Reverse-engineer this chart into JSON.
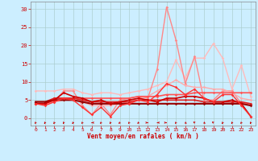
{
  "xlabel": "Vent moyen/en rafales ( km/h )",
  "background_color": "#cceeff",
  "grid_color": "#aacccc",
  "x_ticks": [
    0,
    1,
    2,
    3,
    4,
    5,
    6,
    7,
    8,
    9,
    10,
    11,
    12,
    13,
    14,
    15,
    16,
    17,
    18,
    19,
    20,
    21,
    22,
    23
  ],
  "ylim": [
    -2,
    32
  ],
  "yticks": [
    0,
    5,
    10,
    15,
    20,
    25,
    30
  ],
  "lines": [
    {
      "x": [
        0,
        1,
        2,
        3,
        4,
        5,
        6,
        7,
        8,
        9,
        10,
        11,
        12,
        13,
        14,
        15,
        16,
        17,
        18,
        19,
        20,
        21,
        22,
        23
      ],
      "y": [
        7.5,
        7.5,
        7.5,
        8.0,
        8.0,
        7.0,
        6.5,
        7.0,
        7.0,
        6.5,
        7.0,
        7.5,
        8.0,
        9.0,
        10.0,
        16.0,
        11.0,
        16.5,
        16.5,
        20.5,
        16.5,
        8.0,
        14.5,
        6.0
      ],
      "color": "#ffbbbb",
      "lw": 1.0,
      "marker": "D",
      "ms": 1.8
    },
    {
      "x": [
        0,
        1,
        2,
        3,
        4,
        5,
        6,
        7,
        8,
        9,
        10,
        11,
        12,
        13,
        14,
        15,
        16,
        17,
        18,
        19,
        20,
        21,
        22,
        23
      ],
      "y": [
        4.0,
        4.0,
        4.5,
        7.5,
        7.5,
        3.5,
        1.0,
        4.0,
        1.0,
        5.0,
        5.5,
        6.0,
        5.5,
        13.5,
        30.5,
        21.5,
        9.5,
        17.0,
        5.0,
        5.0,
        7.5,
        7.5,
        4.0,
        4.0
      ],
      "color": "#ff8888",
      "lw": 1.0,
      "marker": "D",
      "ms": 1.8
    },
    {
      "x": [
        0,
        1,
        2,
        3,
        4,
        5,
        6,
        7,
        8,
        9,
        10,
        11,
        12,
        13,
        14,
        15,
        16,
        17,
        18,
        19,
        20,
        21,
        22,
        23
      ],
      "y": [
        4.0,
        4.0,
        4.5,
        5.0,
        5.0,
        4.5,
        3.5,
        3.5,
        3.5,
        4.0,
        4.5,
        5.5,
        6.0,
        7.5,
        9.0,
        10.5,
        9.0,
        8.5,
        8.5,
        8.0,
        8.0,
        7.0,
        5.5,
        5.0
      ],
      "color": "#ffaaaa",
      "lw": 1.0,
      "marker": "D",
      "ms": 1.8
    },
    {
      "x": [
        0,
        1,
        2,
        3,
        4,
        5,
        6,
        7,
        8,
        9,
        10,
        11,
        12,
        13,
        14,
        15,
        16,
        17,
        18,
        19,
        20,
        21,
        22,
        23
      ],
      "y": [
        4.0,
        4.0,
        5.5,
        5.5,
        5.5,
        5.5,
        5.5,
        5.5,
        5.5,
        5.5,
        5.5,
        6.0,
        6.0,
        6.0,
        6.5,
        6.5,
        6.5,
        7.0,
        7.0,
        7.0,
        7.0,
        7.0,
        7.0,
        7.0
      ],
      "color": "#ff5555",
      "lw": 1.2,
      "marker": "D",
      "ms": 1.8
    },
    {
      "x": [
        0,
        1,
        2,
        3,
        4,
        5,
        6,
        7,
        8,
        9,
        10,
        11,
        12,
        13,
        14,
        15,
        16,
        17,
        18,
        19,
        20,
        21,
        22,
        23
      ],
      "y": [
        4.5,
        4.5,
        5.5,
        5.5,
        5.5,
        5.0,
        4.5,
        4.5,
        4.5,
        4.5,
        4.5,
        5.0,
        5.0,
        5.0,
        5.0,
        5.0,
        5.0,
        5.0,
        4.5,
        4.5,
        4.5,
        4.5,
        4.5,
        4.0
      ],
      "color": "#dd2222",
      "lw": 1.2,
      "marker": "D",
      "ms": 1.8
    },
    {
      "x": [
        0,
        1,
        2,
        3,
        4,
        5,
        6,
        7,
        8,
        9,
        10,
        11,
        12,
        13,
        14,
        15,
        16,
        17,
        18,
        19,
        20,
        21,
        22,
        23
      ],
      "y": [
        4.5,
        4.5,
        5.0,
        5.0,
        5.0,
        4.5,
        4.0,
        4.0,
        4.0,
        4.0,
        4.0,
        4.0,
        4.0,
        4.0,
        4.0,
        4.0,
        4.0,
        4.0,
        4.0,
        4.0,
        4.0,
        4.0,
        4.0,
        3.5
      ],
      "color": "#990000",
      "lw": 1.5,
      "marker": "D",
      "ms": 1.8
    },
    {
      "x": [
        0,
        1,
        2,
        3,
        4,
        5,
        6,
        7,
        8,
        9,
        10,
        11,
        12,
        13,
        14,
        15,
        16,
        17,
        18,
        19,
        20,
        21,
        22,
        23
      ],
      "y": [
        4.0,
        4.0,
        5.0,
        7.0,
        6.0,
        5.5,
        4.5,
        5.0,
        4.0,
        4.5,
        5.0,
        5.5,
        5.0,
        4.5,
        5.5,
        5.5,
        6.0,
        6.0,
        5.5,
        4.5,
        4.5,
        5.0,
        4.0,
        0.5
      ],
      "color": "#cc0000",
      "lw": 1.2,
      "marker": "D",
      "ms": 1.8
    },
    {
      "x": [
        0,
        1,
        2,
        3,
        4,
        5,
        6,
        7,
        8,
        9,
        10,
        11,
        12,
        13,
        14,
        15,
        16,
        17,
        18,
        19,
        20,
        21,
        22,
        23
      ],
      "y": [
        4.0,
        3.5,
        4.5,
        5.5,
        5.0,
        3.0,
        1.0,
        3.0,
        0.5,
        3.5,
        4.0,
        5.0,
        4.5,
        6.5,
        9.5,
        8.5,
        6.5,
        8.0,
        5.5,
        4.5,
        6.5,
        6.5,
        3.5,
        0.5
      ],
      "color": "#ff3333",
      "lw": 1.0,
      "marker": "D",
      "ms": 1.8
    }
  ],
  "wind_arrows": {
    "y_data": -1.5,
    "color": "#cc0000",
    "angles_deg": [
      210,
      200,
      200,
      195,
      200,
      210,
      270,
      215,
      200,
      220,
      210,
      215,
      90,
      270,
      90,
      210,
      135,
      315,
      135,
      315,
      200,
      200,
      210,
      200
    ]
  }
}
